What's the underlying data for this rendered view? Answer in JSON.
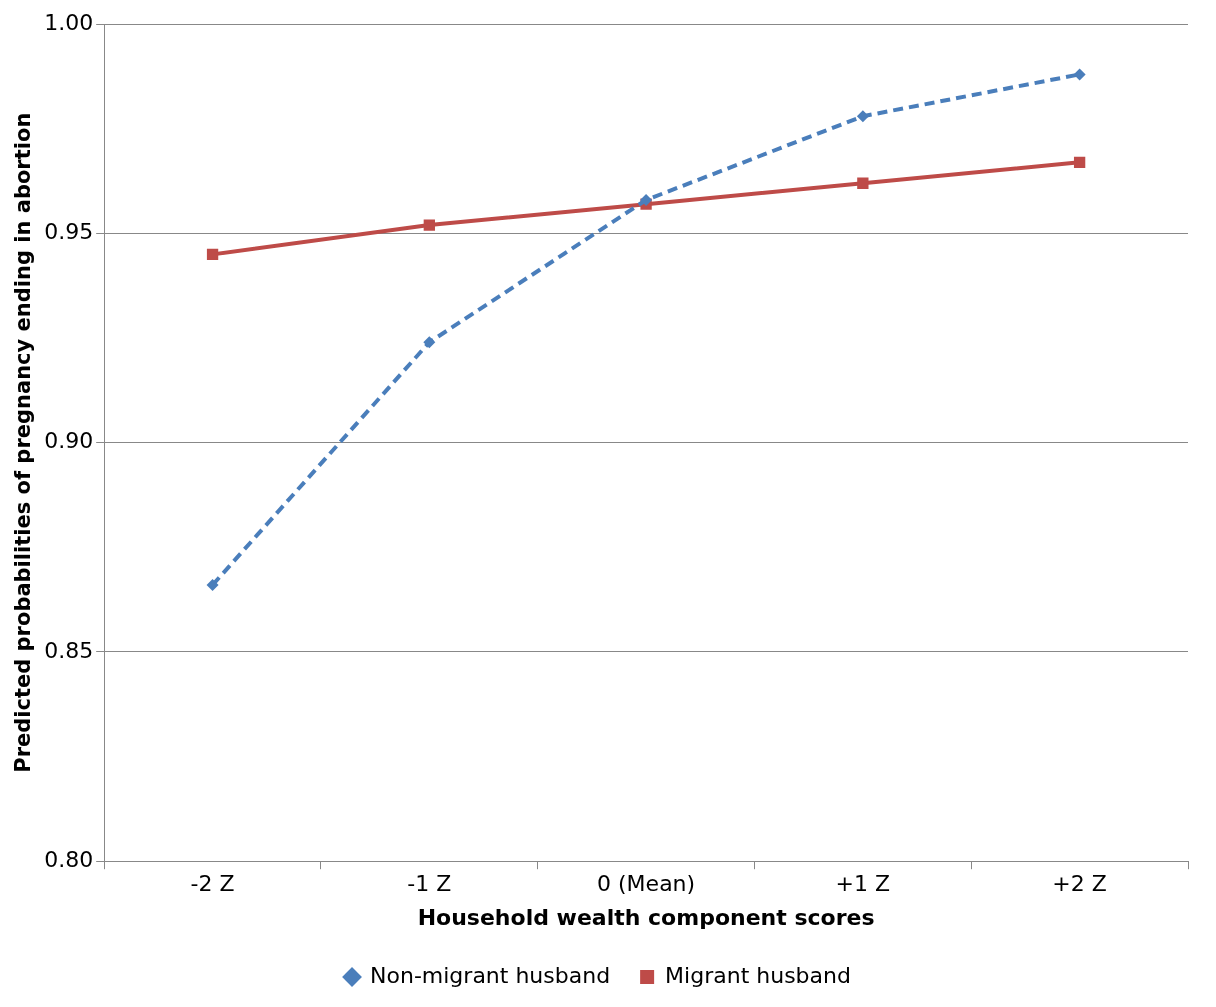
{
  "chart_data": {
    "type": "line",
    "xlabel": "Household wealth component scores",
    "ylabel": "Predicted probabilities of pregnancy ending in abortion",
    "categories": [
      "-2 Z",
      "-1 Z",
      "0 (Mean)",
      "+1 Z",
      "+2 Z"
    ],
    "series": [
      {
        "name": "Non-migrant husband",
        "color": "#4a7ebb",
        "values": [
          0.866,
          0.924,
          0.958,
          0.978,
          0.988
        ],
        "marker": "diamond",
        "line_style": "dashed"
      },
      {
        "name": "Migrant husband",
        "color": "#be4b48",
        "values": [
          0.945,
          0.952,
          0.957,
          0.962,
          0.967
        ],
        "marker": "square",
        "line_style": "solid"
      }
    ],
    "ylim": [
      0.8,
      1.0
    ],
    "yticks": [
      {
        "value": 0.8,
        "label": "0.80"
      },
      {
        "value": 0.85,
        "label": "0.85"
      },
      {
        "value": 0.9,
        "label": "0.90"
      },
      {
        "value": 0.95,
        "label": "0.95"
      },
      {
        "value": 1.0,
        "label": "1.00"
      }
    ],
    "grid": "y",
    "legend": "bottom"
  }
}
